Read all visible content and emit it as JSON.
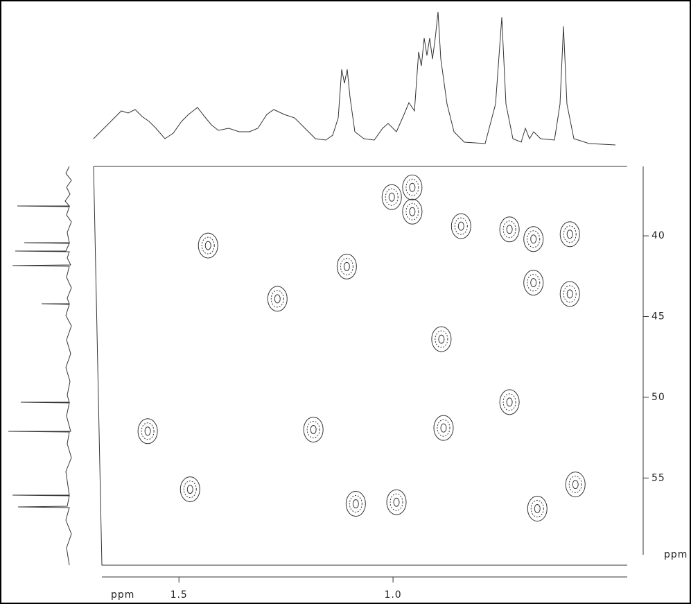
{
  "chart_data": {
    "type": "contour",
    "x_label": "ppm",
    "y_label": "ppm",
    "xlim": [
      1.68,
      0.453
    ],
    "ylim": [
      35.7,
      60.4
    ],
    "xticks": [
      1.5,
      {
        "value": 1,
        "label": "1.0"
      }
    ],
    "yticks": [
      40,
      45,
      50,
      55
    ],
    "color": "#333333",
    "peaks": {
      "x": [
        1.432,
        1.27,
        1.108,
        1.186,
        1.573,
        1.474,
        1.087,
        0.992,
        0.955,
        0.955,
        1.003,
        0.887,
        0.882,
        0.728,
        0.728,
        0.841,
        0.672,
        0.672,
        0.587,
        0.587,
        0.663,
        0.574
      ],
      "y": [
        40.6,
        43.9,
        41.9,
        52.0,
        52.1,
        55.7,
        56.6,
        56.5,
        37.0,
        38.5,
        37.6,
        46.4,
        51.9,
        50.3,
        39.6,
        39.4,
        40.2,
        42.9,
        39.9,
        43.6,
        56.9,
        55.4
      ]
    }
  }
}
